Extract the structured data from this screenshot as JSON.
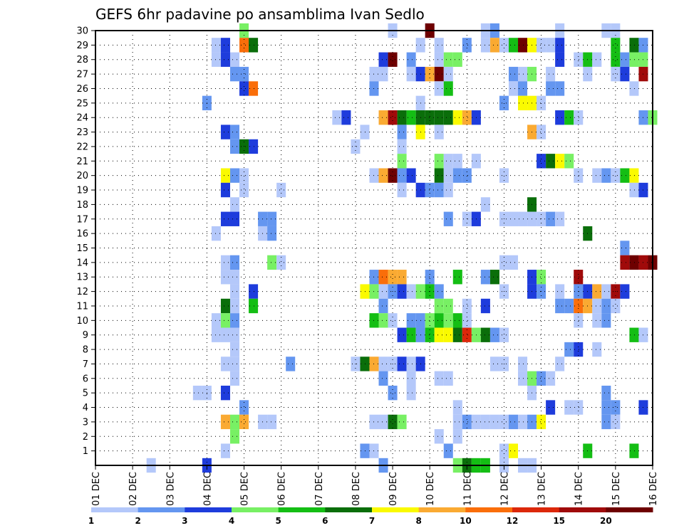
{
  "chart_data": {
    "type": "heatmap",
    "title": "GEFS 6hr padavine po ansamblima Ivan Sedlo",
    "xlabel": "",
    "ylabel": "",
    "x_tick_labels": [
      "01 DEC",
      "02 DEC",
      "03 DEC",
      "04 DEC",
      "05 DEC",
      "06 DEC",
      "07 DEC",
      "08 DEC",
      "09 DEC",
      "10 DEC",
      "11 DEC",
      "12 DEC",
      "13 DEC",
      "14 DEC",
      "15 DEC",
      "16 DEC"
    ],
    "y_tick_labels": [
      "1",
      "2",
      "3",
      "4",
      "5",
      "6",
      "7",
      "8",
      "9",
      "10",
      "11",
      "12",
      "13",
      "14",
      "15",
      "16",
      "17",
      "18",
      "19",
      "20",
      "21",
      "22",
      "23",
      "24",
      "25",
      "26",
      "27",
      "28",
      "29",
      "30"
    ],
    "x_range_days": [
      0,
      15
    ],
    "y_range": [
      0,
      30
    ],
    "grid": true,
    "colorbar": {
      "tick_labels": [
        "1",
        "2",
        "3",
        "4",
        "5",
        "6",
        "7",
        "8",
        "10",
        "12",
        "15",
        "20"
      ],
      "colors": [
        "#b4c8fa",
        "#6496f0",
        "#1e3cdc",
        "#78f064",
        "#14be14",
        "#0a6e0a",
        "#fafa00",
        "#faaa32",
        "#fa6e0a",
        "#dc280a",
        "#a00a0a",
        "#6e0000"
      ],
      "placement": "bottom"
    },
    "cells": [
      [
        4,
        30,
        4
      ],
      [
        8,
        30,
        1
      ],
      [
        9,
        30,
        1
      ],
      [
        9,
        30,
        12
      ],
      [
        10.5,
        30,
        1
      ],
      [
        10.75,
        30,
        2
      ],
      [
        12.5,
        30,
        1
      ],
      [
        13.75,
        30,
        1
      ],
      [
        14,
        30,
        1
      ],
      [
        3.25,
        29,
        1
      ],
      [
        3.5,
        29,
        3
      ],
      [
        4,
        29,
        9
      ],
      [
        4.25,
        29,
        6
      ],
      [
        8.75,
        29,
        1
      ],
      [
        9.25,
        29,
        1
      ],
      [
        10,
        29,
        2
      ],
      [
        10.5,
        29,
        1
      ],
      [
        10.75,
        29,
        8
      ],
      [
        11,
        29,
        1
      ],
      [
        11.25,
        29,
        5
      ],
      [
        11.5,
        29,
        12
      ],
      [
        11.75,
        29,
        7
      ],
      [
        12,
        29,
        1
      ],
      [
        12.25,
        29,
        1
      ],
      [
        12.5,
        29,
        3
      ],
      [
        14,
        29,
        5
      ],
      [
        14.5,
        29,
        6
      ],
      [
        14.75,
        29,
        2
      ],
      [
        3.25,
        28,
        1
      ],
      [
        3.5,
        28,
        3
      ],
      [
        3.75,
        28,
        1
      ],
      [
        7.75,
        28,
        3
      ],
      [
        8,
        28,
        12
      ],
      [
        8.5,
        28,
        2
      ],
      [
        9.25,
        28,
        1
      ],
      [
        9.5,
        28,
        4
      ],
      [
        9.75,
        28,
        4
      ],
      [
        12.5,
        28,
        3
      ],
      [
        13,
        28,
        1
      ],
      [
        13.25,
        28,
        5
      ],
      [
        13.5,
        28,
        1
      ],
      [
        14,
        28,
        5
      ],
      [
        14.25,
        28,
        2
      ],
      [
        14.5,
        28,
        4
      ],
      [
        14.75,
        28,
        4
      ],
      [
        3.75,
        27,
        2
      ],
      [
        4,
        27,
        2
      ],
      [
        7.5,
        27,
        1
      ],
      [
        7.75,
        27,
        1
      ],
      [
        8.5,
        27,
        1
      ],
      [
        8.75,
        27,
        3
      ],
      [
        9,
        27,
        8
      ],
      [
        9.25,
        27,
        12
      ],
      [
        9.5,
        27,
        1
      ],
      [
        11.25,
        27,
        2
      ],
      [
        11.5,
        27,
        1
      ],
      [
        11.75,
        27,
        4
      ],
      [
        12.25,
        27,
        1
      ],
      [
        13.25,
        27,
        1
      ],
      [
        14,
        27,
        1
      ],
      [
        14.25,
        27,
        3
      ],
      [
        14.75,
        27,
        11
      ],
      [
        4,
        26,
        3
      ],
      [
        4.25,
        26,
        9
      ],
      [
        7.5,
        26,
        2
      ],
      [
        9.25,
        26,
        1
      ],
      [
        9.5,
        26,
        5
      ],
      [
        11.25,
        26,
        1
      ],
      [
        11.5,
        26,
        2
      ],
      [
        12.25,
        26,
        2
      ],
      [
        12.5,
        26,
        2
      ],
      [
        14.5,
        26,
        1
      ],
      [
        3,
        25,
        2
      ],
      [
        8.75,
        25,
        1
      ],
      [
        11,
        25,
        2
      ],
      [
        11.5,
        25,
        7
      ],
      [
        11.75,
        25,
        7
      ],
      [
        12,
        25,
        1
      ],
      [
        6.5,
        24,
        1
      ],
      [
        6.75,
        24,
        3
      ],
      [
        7.75,
        24,
        8
      ],
      [
        8,
        24,
        11
      ],
      [
        8.25,
        24,
        6
      ],
      [
        8.5,
        24,
        5
      ],
      [
        8.75,
        24,
        6
      ],
      [
        9,
        24,
        6
      ],
      [
        9.25,
        24,
        6
      ],
      [
        9.5,
        24,
        6
      ],
      [
        9.75,
        24,
        7
      ],
      [
        10,
        24,
        8
      ],
      [
        10.25,
        24,
        3
      ],
      [
        12.5,
        24,
        3
      ],
      [
        12.75,
        24,
        5
      ],
      [
        13,
        24,
        1
      ],
      [
        14.75,
        24,
        2
      ],
      [
        15,
        24,
        4
      ],
      [
        3.5,
        23,
        3
      ],
      [
        3.75,
        23,
        2
      ],
      [
        7.25,
        23,
        1
      ],
      [
        8.25,
        23,
        2
      ],
      [
        8.75,
        23,
        7
      ],
      [
        9.25,
        23,
        1
      ],
      [
        11.75,
        23,
        8
      ],
      [
        12,
        23,
        1
      ],
      [
        3.75,
        22,
        2
      ],
      [
        4,
        22,
        6
      ],
      [
        4.25,
        22,
        3
      ],
      [
        7,
        22,
        1
      ],
      [
        8.25,
        22,
        1
      ],
      [
        8.25,
        21,
        4
      ],
      [
        9.25,
        21,
        4
      ],
      [
        9.5,
        21,
        1
      ],
      [
        9.75,
        21,
        1
      ],
      [
        10.25,
        21,
        1
      ],
      [
        12,
        21,
        3
      ],
      [
        12.25,
        21,
        6
      ],
      [
        12.5,
        21,
        7
      ],
      [
        12.75,
        21,
        4
      ],
      [
        3.5,
        20,
        7
      ],
      [
        3.75,
        20,
        2
      ],
      [
        4,
        20,
        1
      ],
      [
        7.5,
        20,
        1
      ],
      [
        7.75,
        20,
        8
      ],
      [
        8,
        20,
        12
      ],
      [
        8.25,
        20,
        2
      ],
      [
        8.5,
        20,
        3
      ],
      [
        9.25,
        20,
        6
      ],
      [
        9.5,
        20,
        1
      ],
      [
        9.75,
        20,
        2
      ],
      [
        10,
        20,
        2
      ],
      [
        11,
        20,
        1
      ],
      [
        13,
        20,
        1
      ],
      [
        13.5,
        20,
        1
      ],
      [
        13.75,
        20,
        2
      ],
      [
        14,
        20,
        1
      ],
      [
        14.25,
        20,
        5
      ],
      [
        14.5,
        20,
        7
      ],
      [
        3.5,
        19,
        3
      ],
      [
        4,
        19,
        1
      ],
      [
        5,
        19,
        1
      ],
      [
        8.25,
        19,
        1
      ],
      [
        8.75,
        19,
        3
      ],
      [
        9,
        19,
        2
      ],
      [
        9.25,
        19,
        2
      ],
      [
        9.5,
        19,
        1
      ],
      [
        14.5,
        19,
        1
      ],
      [
        14.75,
        19,
        3
      ],
      [
        3.75,
        18,
        1
      ],
      [
        10.5,
        18,
        1
      ],
      [
        11.75,
        18,
        6
      ],
      [
        3.5,
        17,
        3
      ],
      [
        3.75,
        17,
        3
      ],
      [
        4.5,
        17,
        2
      ],
      [
        4.75,
        17,
        2
      ],
      [
        9.5,
        17,
        2
      ],
      [
        10,
        17,
        1
      ],
      [
        10.25,
        17,
        3
      ],
      [
        11,
        17,
        1
      ],
      [
        11.25,
        17,
        1
      ],
      [
        11.5,
        17,
        1
      ],
      [
        11.75,
        17,
        1
      ],
      [
        12,
        17,
        1
      ],
      [
        12.25,
        17,
        2
      ],
      [
        12.5,
        17,
        1
      ],
      [
        3.25,
        16,
        1
      ],
      [
        4.5,
        16,
        1
      ],
      [
        4.75,
        16,
        2
      ],
      [
        13.25,
        16,
        6
      ],
      [
        14.25,
        15,
        2
      ],
      [
        3.5,
        14,
        1
      ],
      [
        3.75,
        14,
        2
      ],
      [
        4.75,
        14,
        4
      ],
      [
        5,
        14,
        1
      ],
      [
        11,
        14,
        1
      ],
      [
        11.25,
        14,
        1
      ],
      [
        14.25,
        14,
        11
      ],
      [
        14.5,
        14,
        12
      ],
      [
        14.75,
        14,
        11
      ],
      [
        15,
        14,
        12
      ],
      [
        3.5,
        13,
        1
      ],
      [
        3.75,
        13,
        1
      ],
      [
        7.5,
        13,
        2
      ],
      [
        7.75,
        13,
        9
      ],
      [
        8,
        13,
        8
      ],
      [
        8.25,
        13,
        8
      ],
      [
        9,
        13,
        2
      ],
      [
        9.75,
        13,
        5
      ],
      [
        10.5,
        13,
        2
      ],
      [
        10.75,
        13,
        6
      ],
      [
        11.75,
        13,
        3
      ],
      [
        12,
        13,
        4
      ],
      [
        13,
        13,
        11
      ],
      [
        3.75,
        12,
        1
      ],
      [
        4.25,
        12,
        3
      ],
      [
        7.25,
        12,
        7
      ],
      [
        7.5,
        12,
        4
      ],
      [
        7.75,
        12,
        1
      ],
      [
        8,
        12,
        2
      ],
      [
        8.25,
        12,
        3
      ],
      [
        8.5,
        12,
        1
      ],
      [
        8.75,
        12,
        4
      ],
      [
        9,
        12,
        5
      ],
      [
        9.25,
        12,
        2
      ],
      [
        11,
        12,
        1
      ],
      [
        11.75,
        12,
        3
      ],
      [
        12,
        12,
        2
      ],
      [
        12.5,
        12,
        1
      ],
      [
        13,
        12,
        2
      ],
      [
        13.25,
        12,
        3
      ],
      [
        13.5,
        12,
        8
      ],
      [
        13.75,
        12,
        1
      ],
      [
        14,
        12,
        11
      ],
      [
        14.25,
        12,
        3
      ],
      [
        3.5,
        11,
        6
      ],
      [
        3.75,
        11,
        1
      ],
      [
        4.25,
        11,
        5
      ],
      [
        7.75,
        11,
        2
      ],
      [
        9.25,
        11,
        4
      ],
      [
        9.5,
        11,
        4
      ],
      [
        10,
        11,
        1
      ],
      [
        10.5,
        11,
        3
      ],
      [
        12.5,
        11,
        2
      ],
      [
        12.75,
        11,
        2
      ],
      [
        13,
        11,
        9
      ],
      [
        13.25,
        11,
        8
      ],
      [
        13.5,
        11,
        1
      ],
      [
        13.75,
        11,
        2
      ],
      [
        14,
        11,
        1
      ],
      [
        3.25,
        10,
        1
      ],
      [
        3.5,
        10,
        4
      ],
      [
        3.75,
        10,
        2
      ],
      [
        7.5,
        10,
        5
      ],
      [
        7.75,
        10,
        4
      ],
      [
        8,
        10,
        1
      ],
      [
        8.5,
        10,
        2
      ],
      [
        8.75,
        10,
        2
      ],
      [
        9,
        10,
        4
      ],
      [
        9.25,
        10,
        5
      ],
      [
        9.5,
        10,
        4
      ],
      [
        9.75,
        10,
        5
      ],
      [
        10,
        10,
        1
      ],
      [
        13,
        10,
        1
      ],
      [
        13.5,
        10,
        1
      ],
      [
        13.75,
        10,
        2
      ],
      [
        3.25,
        9,
        1
      ],
      [
        3.5,
        9,
        1
      ],
      [
        3.75,
        9,
        1
      ],
      [
        8.25,
        9,
        3
      ],
      [
        8.5,
        9,
        5
      ],
      [
        8.75,
        9,
        2
      ],
      [
        9,
        9,
        5
      ],
      [
        9.25,
        9,
        7
      ],
      [
        9.5,
        9,
        7
      ],
      [
        9.75,
        9,
        6
      ],
      [
        10,
        9,
        10
      ],
      [
        10.25,
        9,
        4
      ],
      [
        10.5,
        9,
        6
      ],
      [
        10.75,
        9,
        2
      ],
      [
        11,
        9,
        1
      ],
      [
        14.5,
        9,
        5
      ],
      [
        14.75,
        9,
        1
      ],
      [
        3.75,
        8,
        1
      ],
      [
        12.75,
        8,
        2
      ],
      [
        13,
        8,
        3
      ],
      [
        13.5,
        8,
        1
      ],
      [
        3.5,
        7,
        1
      ],
      [
        3.75,
        7,
        1
      ],
      [
        5.25,
        7,
        2
      ],
      [
        7,
        7,
        1
      ],
      [
        7.25,
        7,
        6
      ],
      [
        7.5,
        7,
        8
      ],
      [
        7.75,
        7,
        1
      ],
      [
        8,
        7,
        1
      ],
      [
        8.25,
        7,
        3
      ],
      [
        8.5,
        7,
        1
      ],
      [
        8.75,
        7,
        3
      ],
      [
        10.75,
        7,
        1
      ],
      [
        11,
        7,
        1
      ],
      [
        11.5,
        7,
        1
      ],
      [
        12.5,
        7,
        1
      ],
      [
        3.75,
        6,
        1
      ],
      [
        7.75,
        6,
        2
      ],
      [
        8.5,
        6,
        1
      ],
      [
        9.25,
        6,
        1
      ],
      [
        9.5,
        6,
        1
      ],
      [
        11.5,
        6,
        1
      ],
      [
        11.75,
        6,
        4
      ],
      [
        12,
        6,
        2
      ],
      [
        12.25,
        6,
        1
      ],
      [
        2.75,
        5,
        1
      ],
      [
        3,
        5,
        1
      ],
      [
        3.5,
        5,
        3
      ],
      [
        8,
        5,
        2
      ],
      [
        8.5,
        5,
        1
      ],
      [
        11.75,
        5,
        1
      ],
      [
        13.75,
        5,
        2
      ],
      [
        4,
        4,
        2
      ],
      [
        9.75,
        4,
        1
      ],
      [
        12.25,
        4,
        3
      ],
      [
        12.75,
        4,
        1
      ],
      [
        13,
        4,
        1
      ],
      [
        13.75,
        4,
        2
      ],
      [
        14,
        4,
        2
      ],
      [
        14.75,
        4,
        3
      ],
      [
        3.5,
        3,
        8
      ],
      [
        3.75,
        3,
        4
      ],
      [
        4,
        3,
        8
      ],
      [
        4.5,
        3,
        1
      ],
      [
        4.75,
        3,
        1
      ],
      [
        7.5,
        3,
        1
      ],
      [
        7.75,
        3,
        1
      ],
      [
        8,
        3,
        6
      ],
      [
        8.25,
        3,
        4
      ],
      [
        9.75,
        3,
        1
      ],
      [
        10,
        3,
        2
      ],
      [
        10.25,
        3,
        1
      ],
      [
        10.5,
        3,
        1
      ],
      [
        10.75,
        3,
        1
      ],
      [
        11,
        3,
        1
      ],
      [
        11.25,
        3,
        2
      ],
      [
        11.5,
        3,
        1
      ],
      [
        11.75,
        3,
        2
      ],
      [
        12,
        3,
        7
      ],
      [
        13.75,
        3,
        2
      ],
      [
        14,
        3,
        1
      ],
      [
        3.75,
        2,
        4
      ],
      [
        9.25,
        2,
        1
      ],
      [
        9.75,
        2,
        1
      ],
      [
        3.5,
        1,
        1
      ],
      [
        7.25,
        1,
        2
      ],
      [
        7.5,
        1,
        1
      ],
      [
        9.5,
        1,
        2
      ],
      [
        11,
        1,
        1
      ],
      [
        11.25,
        1,
        7
      ],
      [
        13.25,
        1,
        5
      ],
      [
        14.5,
        1,
        5
      ],
      [
        1.5,
        0,
        1
      ],
      [
        3,
        0,
        3
      ],
      [
        7.75,
        0,
        2
      ],
      [
        9.75,
        0,
        4
      ],
      [
        10,
        0,
        6
      ],
      [
        10.25,
        0,
        5
      ],
      [
        10.5,
        0,
        5
      ],
      [
        11,
        0,
        1
      ],
      [
        11.5,
        0,
        1
      ],
      [
        11.75,
        0,
        1
      ]
    ]
  }
}
